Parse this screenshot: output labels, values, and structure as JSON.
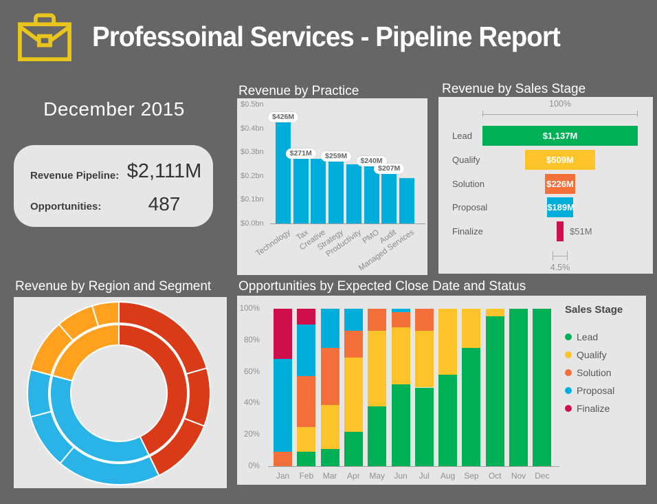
{
  "page": {
    "background": "#666666",
    "panel_background": "#E6E6E6"
  },
  "header": {
    "title": "Professoinal Services - Pipeline Report",
    "icon": "briefcase-icon",
    "icon_color": "#E9C51D"
  },
  "summary": {
    "month_title": "December 2015",
    "card": {
      "revenue_label": "Revenue Pipeline:",
      "revenue_value": "$2,111M",
      "opportunities_label": "Opportunities:",
      "opportunities_value": "487"
    }
  },
  "chart_data": [
    {
      "id": "revenue-by-practice",
      "type": "bar",
      "title": "Revenue by Practice",
      "categories": [
        "Technology",
        "Tax",
        "Creative",
        "Strategy",
        "Productivity",
        "PMO",
        "Audit",
        "Managed Services"
      ],
      "values": [
        426,
        271,
        271,
        259,
        248,
        240,
        207,
        190
      ],
      "value_unit": "$M",
      "data_labels": [
        "$426M",
        "$271M",
        null,
        "$259M",
        null,
        "$240M",
        "$207M",
        null
      ],
      "y_ticks": [
        "$0.0bn",
        "$0.1bn",
        "$0.2bn",
        "$0.3bn",
        "$0.4bn",
        "$0.5bn"
      ],
      "ylim": [
        0,
        500
      ],
      "bar_color": "#00AEDC",
      "grid": false,
      "xlabel": "",
      "ylabel": ""
    },
    {
      "id": "revenue-by-sales-stage",
      "type": "funnel",
      "title": "Revenue by Sales Stage",
      "stages": [
        {
          "label": "Lead",
          "value": 1137,
          "display": "$1,137M",
          "color": "#00B056"
        },
        {
          "label": "Qualify",
          "value": 509,
          "display": "$509M",
          "color": "#FDC32B"
        },
        {
          "label": "Solution",
          "value": 226,
          "display": "$226M",
          "color": "#F3703A"
        },
        {
          "label": "Proposal",
          "value": 189,
          "display": "$189M",
          "color": "#00AEDC"
        },
        {
          "label": "Finalize",
          "value": 51,
          "display": "$51M",
          "color": "#D0104C"
        }
      ],
      "max_value": 1137,
      "top_annotation": "100%",
      "bottom_annotation": "4.5%"
    },
    {
      "id": "revenue-by-region-and-segment",
      "type": "pie",
      "title": "Revenue by Region and Segment",
      "subtype": "double-ring donut, inner=region outer=segment, no labels shown",
      "inner_ring": [
        {
          "name": "region-1",
          "color": "#D93B18",
          "start_deg": 0,
          "end_deg": 154,
          "share_pct": 42.8
        },
        {
          "name": "region-2",
          "color": "#29B3E7",
          "start_deg": 154,
          "end_deg": 285,
          "share_pct": 36.4
        },
        {
          "name": "region-3",
          "color": "#FFA11E",
          "start_deg": 285,
          "end_deg": 360,
          "share_pct": 20.8
        }
      ],
      "outer_ring": [
        {
          "region": "region-1",
          "color": "#D93B18",
          "start_deg": 0,
          "end_deg": 74,
          "share_pct": 20.6
        },
        {
          "region": "region-1",
          "color": "#D93B18",
          "start_deg": 74,
          "end_deg": 111,
          "share_pct": 10.3
        },
        {
          "region": "region-1",
          "color": "#D93B18",
          "start_deg": 111,
          "end_deg": 154,
          "share_pct": 11.9
        },
        {
          "region": "region-2",
          "color": "#29B3E7",
          "start_deg": 154,
          "end_deg": 220,
          "share_pct": 18.3
        },
        {
          "region": "region-2",
          "color": "#29B3E7",
          "start_deg": 220,
          "end_deg": 255,
          "share_pct": 9.7
        },
        {
          "region": "region-2",
          "color": "#29B3E7",
          "start_deg": 255,
          "end_deg": 285,
          "share_pct": 8.3
        },
        {
          "region": "region-3",
          "color": "#FFA11E",
          "start_deg": 285,
          "end_deg": 319,
          "share_pct": 9.5
        },
        {
          "region": "region-3",
          "color": "#FFA11E",
          "start_deg": 319,
          "end_deg": 343,
          "share_pct": 6.7
        },
        {
          "region": "region-3",
          "color": "#FFA11E",
          "start_deg": 343,
          "end_deg": 360,
          "share_pct": 4.7
        }
      ]
    },
    {
      "id": "opportunities-by-close-date",
      "type": "bar",
      "stacked": true,
      "percent": true,
      "title": "Opportunities by Expected Close Date and Status",
      "categories": [
        "Jan",
        "Feb",
        "Mar",
        "Apr",
        "May",
        "Jun",
        "Jul",
        "Aug",
        "Sep",
        "Oct",
        "Nov",
        "Dec"
      ],
      "series": [
        {
          "name": "Lead",
          "color": "#00B056",
          "values": [
            0,
            9,
            11,
            22,
            38,
            52,
            50,
            58,
            75,
            95,
            100,
            100
          ]
        },
        {
          "name": "Qualify",
          "color": "#FDC32B",
          "values": [
            0,
            16,
            28,
            47,
            48,
            36,
            36,
            42,
            25,
            5,
            0,
            0
          ]
        },
        {
          "name": "Solution",
          "color": "#F3703A",
          "values": [
            9,
            32,
            36,
            17,
            14,
            10,
            14,
            0,
            0,
            0,
            0,
            0
          ]
        },
        {
          "name": "Proposal",
          "color": "#00AEDC",
          "values": [
            59,
            33,
            25,
            14,
            0,
            2,
            0,
            0,
            0,
            0,
            0,
            0
          ]
        },
        {
          "name": "Finalize",
          "color": "#D0104C",
          "values": [
            32,
            10,
            0,
            0,
            0,
            0,
            0,
            0,
            0,
            0,
            0,
            0
          ]
        }
      ],
      "y_ticks": [
        "0%",
        "20%",
        "40%",
        "60%",
        "80%",
        "100%"
      ],
      "ylim": [
        0,
        100
      ],
      "legend_title": "Sales Stage",
      "legend_position": "right"
    }
  ]
}
